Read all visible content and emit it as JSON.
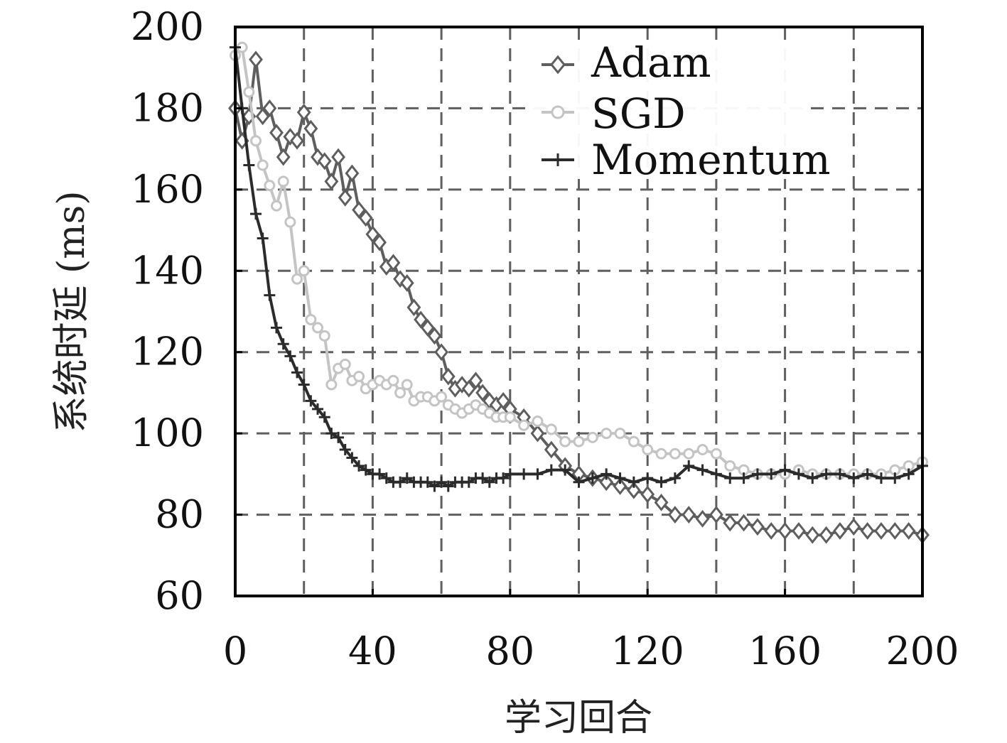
{
  "chart_data": {
    "type": "line",
    "xlabel": "学习回合",
    "ylabel": "系统时延 (ms)",
    "xlim": [
      0,
      200
    ],
    "ylim": [
      60,
      200
    ],
    "xticks": [
      0,
      40,
      80,
      120,
      160,
      200
    ],
    "yticks": [
      60,
      80,
      100,
      120,
      140,
      160,
      180,
      200
    ],
    "xgrid": [
      20,
      40,
      60,
      80,
      100,
      120,
      140,
      160,
      180
    ],
    "ygrid": [
      80,
      100,
      120,
      140,
      160,
      180
    ],
    "grid": true,
    "legend_position": "top-right",
    "series": [
      {
        "name": "Adam",
        "color": "#5e5e5e",
        "marker": "diamond",
        "x": [
          0,
          2,
          4,
          6,
          8,
          10,
          12,
          14,
          16,
          18,
          20,
          22,
          24,
          26,
          28,
          30,
          32,
          34,
          36,
          38,
          40,
          42,
          44,
          46,
          48,
          50,
          52,
          54,
          56,
          58,
          60,
          62,
          64,
          66,
          68,
          70,
          72,
          74,
          76,
          78,
          80,
          84,
          88,
          92,
          96,
          100,
          104,
          108,
          112,
          116,
          120,
          124,
          128,
          132,
          136,
          140,
          144,
          148,
          152,
          156,
          160,
          164,
          168,
          172,
          176,
          180,
          184,
          188,
          192,
          196,
          200
        ],
        "y": [
          180,
          172,
          178,
          192,
          178,
          180,
          174,
          168,
          173,
          172,
          179,
          175,
          168,
          167,
          162,
          168,
          158,
          164,
          155,
          153,
          149,
          147,
          141,
          142,
          138,
          137,
          131,
          128,
          126,
          124,
          120,
          114,
          111,
          112,
          111,
          113,
          110,
          108,
          107,
          108,
          106,
          104,
          100,
          96,
          92,
          90,
          89,
          88,
          87,
          86,
          85,
          83,
          80,
          80,
          79,
          80,
          78,
          78,
          77,
          76,
          76,
          76,
          75,
          75,
          76,
          77,
          76,
          76,
          76,
          76,
          75
        ]
      },
      {
        "name": "SGD",
        "color": "#c4c4c4",
        "marker": "circle",
        "x": [
          0,
          2,
          4,
          6,
          8,
          10,
          12,
          14,
          16,
          18,
          20,
          22,
          24,
          26,
          28,
          30,
          32,
          34,
          36,
          38,
          40,
          42,
          44,
          46,
          48,
          50,
          52,
          54,
          56,
          58,
          60,
          62,
          64,
          66,
          68,
          70,
          72,
          74,
          76,
          78,
          80,
          84,
          88,
          92,
          96,
          100,
          104,
          108,
          112,
          116,
          120,
          124,
          128,
          132,
          136,
          140,
          144,
          148,
          152,
          156,
          160,
          164,
          168,
          172,
          176,
          180,
          184,
          188,
          192,
          196,
          200
        ],
        "y": [
          193,
          195,
          184,
          172,
          166,
          161,
          156,
          162,
          152,
          138,
          140,
          128,
          126,
          124,
          112,
          116,
          117,
          113,
          114,
          111,
          112,
          113,
          112,
          113,
          110,
          112,
          108,
          109,
          109,
          108,
          109,
          107,
          106,
          105,
          106,
          107,
          106,
          105,
          104,
          104,
          104,
          102,
          103,
          101,
          98,
          98,
          99,
          100,
          100,
          98,
          96,
          95,
          95,
          95,
          96,
          95,
          92,
          91,
          90,
          90,
          90,
          91,
          90,
          90,
          90,
          90,
          90,
          90,
          91,
          92,
          93
        ]
      },
      {
        "name": "Momentum",
        "color": "#2b2b2b",
        "marker": "plus",
        "x": [
          0,
          2,
          4,
          6,
          8,
          10,
          12,
          14,
          16,
          18,
          20,
          22,
          24,
          26,
          28,
          30,
          32,
          34,
          36,
          38,
          40,
          42,
          44,
          46,
          48,
          50,
          52,
          54,
          56,
          58,
          60,
          62,
          64,
          66,
          68,
          70,
          72,
          74,
          76,
          78,
          80,
          84,
          88,
          92,
          96,
          100,
          104,
          108,
          112,
          116,
          120,
          124,
          128,
          132,
          136,
          140,
          144,
          148,
          152,
          156,
          160,
          164,
          168,
          172,
          176,
          180,
          184,
          188,
          192,
          196,
          200
        ],
        "y": [
          195,
          180,
          166,
          154,
          148,
          134,
          126,
          122,
          119,
          115,
          112,
          108,
          106,
          104,
          100,
          99,
          96,
          94,
          92,
          91,
          90,
          90,
          89,
          88,
          88,
          89,
          88,
          88,
          88,
          87,
          88,
          87,
          88,
          88,
          88,
          89,
          89,
          88,
          89,
          89,
          90,
          90,
          90,
          91,
          91,
          88,
          89,
          90,
          89,
          88,
          89,
          88,
          89,
          92,
          91,
          90,
          89,
          89,
          90,
          90,
          91,
          90,
          89,
          90,
          90,
          89,
          90,
          89,
          89,
          90,
          92
        ]
      }
    ]
  }
}
